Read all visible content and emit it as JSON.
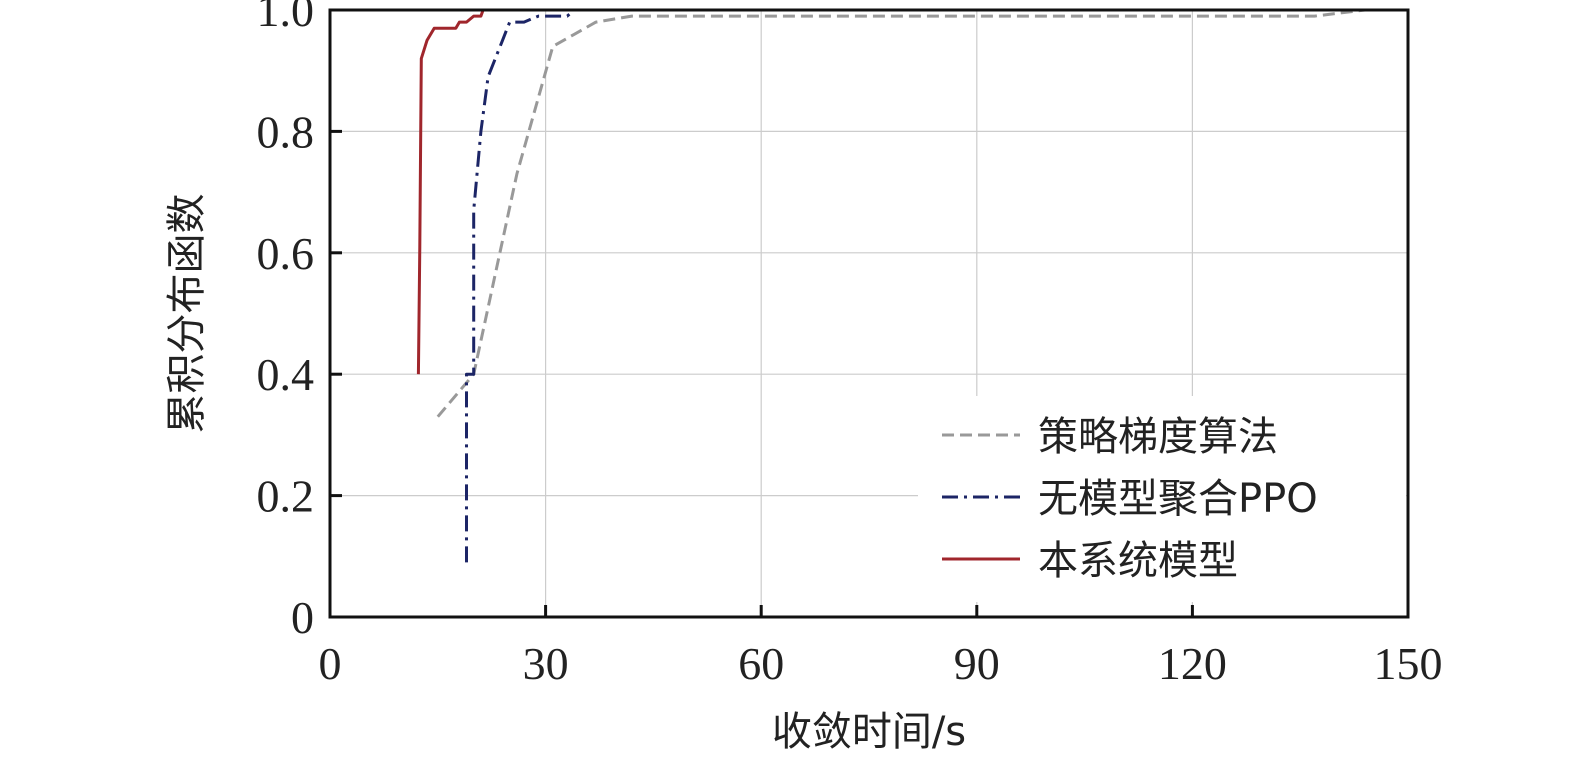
{
  "chart_data": {
    "type": "line",
    "xlabel": "收敛时间/s",
    "ylabel": "累积分布函数",
    "xlim": [
      0,
      150
    ],
    "ylim": [
      0,
      1.0
    ],
    "xticks": [
      0,
      30,
      60,
      90,
      120,
      150
    ],
    "xtick_labels": [
      "0",
      "30",
      "60",
      "90",
      "120",
      "150"
    ],
    "yticks": [
      0,
      0.2,
      0.4,
      0.6,
      0.8,
      1.0
    ],
    "ytick_labels": [
      "0",
      "0.2",
      "0.4",
      "0.6",
      "0.8",
      "1.0"
    ],
    "grid": true,
    "legend_position": "bottom-right",
    "series": [
      {
        "name": "策略梯度算法",
        "color": "#999999",
        "style": "dashed",
        "points": [
          [
            15,
            0.33
          ],
          [
            20,
            0.4
          ],
          [
            26,
            0.73
          ],
          [
            31,
            0.94
          ],
          [
            34,
            0.96
          ],
          [
            37,
            0.98
          ],
          [
            42,
            0.99
          ],
          [
            137,
            0.99
          ],
          [
            144,
            1.0
          ]
        ]
      },
      {
        "name": "无模型聚合PPO",
        "color": "#1c2566",
        "style": "dashdot",
        "points": [
          [
            19,
            0.09
          ],
          [
            19,
            0.4
          ],
          [
            20,
            0.4
          ],
          [
            20,
            0.67
          ],
          [
            21,
            0.8
          ],
          [
            22,
            0.89
          ],
          [
            24,
            0.95
          ],
          [
            25,
            0.98
          ],
          [
            27,
            0.98
          ],
          [
            29,
            0.99
          ],
          [
            33,
            0.99
          ],
          [
            34,
            1.0
          ]
        ]
      },
      {
        "name": "本系统模型",
        "color": "#a0262c",
        "style": "solid",
        "points": [
          [
            12.3,
            0.4
          ],
          [
            12.5,
            0.61
          ],
          [
            12.7,
            0.92
          ],
          [
            13.5,
            0.95
          ],
          [
            14.5,
            0.97
          ],
          [
            17.5,
            0.97
          ],
          [
            18,
            0.98
          ],
          [
            19,
            0.98
          ],
          [
            20,
            0.99
          ],
          [
            21,
            0.99
          ],
          [
            21.3,
            1.0
          ]
        ]
      }
    ]
  }
}
